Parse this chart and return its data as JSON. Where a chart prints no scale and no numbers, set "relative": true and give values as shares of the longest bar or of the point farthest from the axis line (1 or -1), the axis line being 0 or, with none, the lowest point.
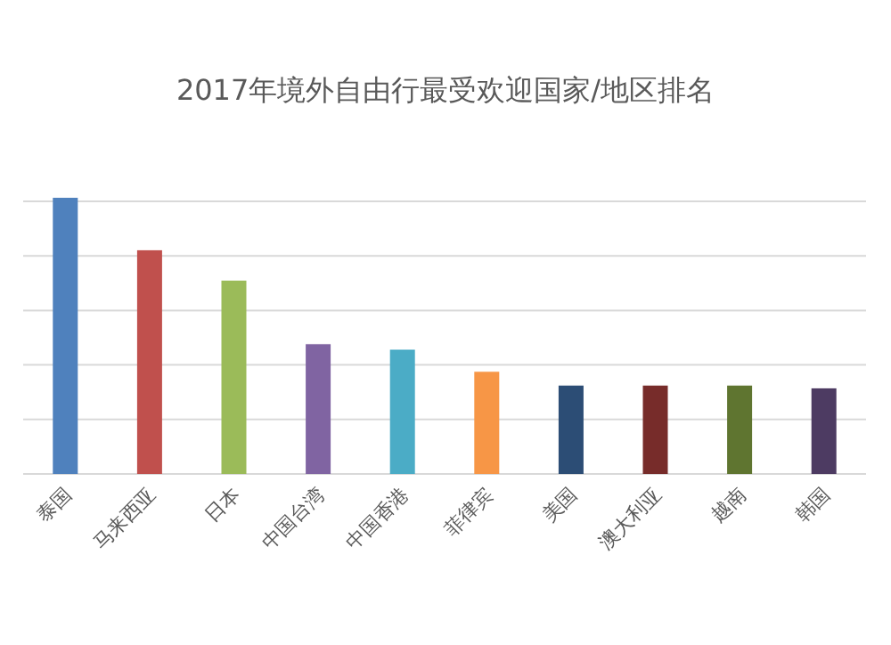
{
  "chart_data": {
    "type": "bar",
    "title": "2017年境外自由行最受欢迎国家/地区排名",
    "relative": true,
    "grid": "y",
    "categories": [
      "泰国",
      "马来西亚",
      "日本",
      "中国台湾",
      "中国香港",
      "菲律宾",
      "美国",
      "澳大利亚",
      "越南",
      "韩国"
    ],
    "values": [
      1,
      0.81,
      0.7,
      0.47,
      0.45,
      0.37,
      0.32,
      0.32,
      0.32,
      0.31
    ],
    "colors": [
      "#4f81bd",
      "#c0504d",
      "#9bbb59",
      "#8064a2",
      "#4bacc6",
      "#f79646",
      "#2c4d75",
      "#772c2a",
      "#5f7530",
      "#4d3b62"
    ]
  }
}
